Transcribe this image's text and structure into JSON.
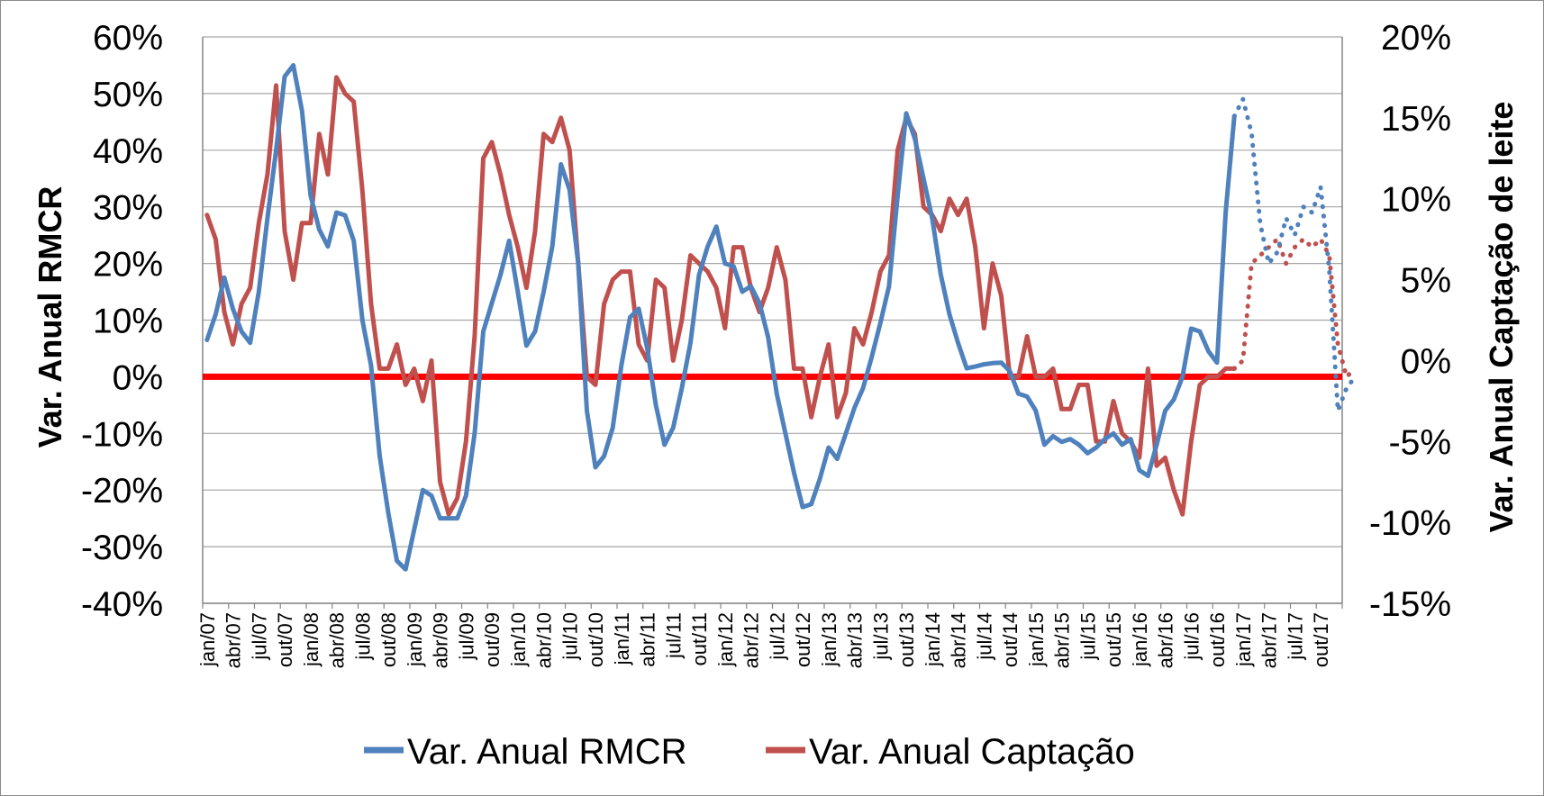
{
  "chart_data": {
    "type": "line",
    "title": "",
    "colors": {
      "rmcr": "#4f81bd",
      "captacao": "#c0504d",
      "zero_line": "#ff0000",
      "grid": "#a6a6a6"
    },
    "y_left": {
      "label": "Var. Anual RMCR",
      "range": [
        -40,
        60
      ],
      "step": 10,
      "tick_labels": [
        "-40%",
        "-30%",
        "-20%",
        "-10%",
        "0%",
        "10%",
        "20%",
        "30%",
        "40%",
        "50%",
        "60%"
      ]
    },
    "y_right": {
      "label": "Var. Anual Captação de leite",
      "range": [
        -15,
        20
      ],
      "step": 5,
      "tick_labels": [
        "-15%",
        "-10%",
        "-5%",
        "0%",
        "5%",
        "10%",
        "15%",
        "20%"
      ]
    },
    "x": {
      "start": "2007-01",
      "count": 132,
      "tick_labels": [
        "jan/07",
        "abr/07",
        "jul/07",
        "out/07",
        "jan/08",
        "abr/08",
        "jul/08",
        "out/08",
        "jan/09",
        "abr/09",
        "jul/09",
        "out/09",
        "jan/10",
        "abr/10",
        "jul/10",
        "out/10",
        "jan/11",
        "abr/11",
        "jul/11",
        "out/11",
        "jan/12",
        "abr/12",
        "jul/12",
        "out/12",
        "jan/13",
        "abr/13",
        "jul/13",
        "out/13",
        "jan/14",
        "abr/14",
        "jul/14",
        "out/14",
        "jan/15",
        "abr/15",
        "jul/15",
        "out/15",
        "jan/16",
        "abr/16",
        "jul/16",
        "out/16",
        "jan/17",
        "abr/17",
        "jul/17",
        "out/17"
      ]
    },
    "grid": true,
    "legend_position": "bottom",
    "series": [
      {
        "name": "Var. Anual RMCR",
        "axis": "left",
        "actual_points": 120,
        "forecast_style": "dotted",
        "values": [
          6.5,
          11.0,
          17.5,
          12.0,
          8.0,
          6.0,
          15.0,
          28.0,
          40.0,
          53.0,
          55.0,
          47.0,
          32.0,
          26.0,
          23.0,
          29.0,
          28.5,
          24.0,
          10.0,
          2.0,
          -14.0,
          -24.0,
          -32.5,
          -34.0,
          -27.0,
          -20.0,
          -21.0,
          -25.0,
          -25.0,
          -25.0,
          -21.0,
          -10.0,
          8.0,
          13.0,
          18.0,
          24.0,
          15.0,
          5.5,
          8.0,
          15.0,
          23.0,
          37.5,
          33.0,
          20.0,
          -6.0,
          -16.0,
          -14.0,
          -9.0,
          2.0,
          10.5,
          12.0,
          5.0,
          -5.0,
          -12.0,
          -9.0,
          -2.0,
          6.0,
          18.0,
          23.0,
          26.5,
          20.0,
          19.5,
          15.0,
          16.0,
          13.0,
          7.0,
          -3.0,
          -10.0,
          -17.0,
          -23.0,
          -22.5,
          -18.0,
          -12.5,
          -14.5,
          -10.0,
          -5.5,
          -2.0,
          3.5,
          9.5,
          16.0,
          32.0,
          46.5,
          42.0,
          35.0,
          28.0,
          18.0,
          11.0,
          6.0,
          1.5,
          1.8,
          2.2,
          2.4,
          2.5,
          1.0,
          -3.0,
          -3.5,
          -6.0,
          -12.0,
          -10.5,
          -11.5,
          -11.0,
          -12.0,
          -13.5,
          -12.5,
          -11.0,
          -10.0,
          -12.0,
          -11.0,
          -16.5,
          -17.5,
          -12.0,
          -6.0,
          -4.0,
          0.0,
          8.5,
          8.0,
          4.5,
          2.5,
          29.0,
          46.0,
          49.0,
          43.0,
          27.0,
          20.0,
          22.0,
          28.0,
          25.0,
          30.0,
          29.0,
          33.5,
          19.0,
          -6.0,
          -2.0,
          0.0
        ]
      },
      {
        "name": "Var. Anual Captação",
        "axis": "right",
        "actual_points": 120,
        "forecast_style": "dotted",
        "values": [
          9.0,
          7.5,
          3.0,
          1.0,
          3.5,
          4.5,
          8.5,
          11.5,
          17.0,
          8.0,
          5.0,
          8.5,
          8.5,
          14.0,
          11.5,
          17.5,
          16.5,
          16.0,
          10.5,
          3.5,
          -0.5,
          -0.5,
          1.0,
          -1.5,
          -0.5,
          -2.5,
          0.0,
          -7.5,
          -9.5,
          -8.5,
          -5.0,
          1.5,
          12.5,
          13.5,
          11.5,
          9.0,
          7.0,
          4.5,
          8.0,
          14.0,
          13.5,
          15.0,
          13.0,
          6.0,
          -1.0,
          -1.5,
          3.5,
          5.0,
          5.5,
          5.5,
          1.0,
          0.0,
          5.0,
          4.5,
          0.0,
          2.5,
          6.5,
          6.0,
          5.5,
          4.5,
          2.0,
          7.0,
          7.0,
          4.5,
          3.0,
          4.5,
          7.0,
          5.0,
          -0.5,
          -0.5,
          -3.5,
          -1.0,
          1.0,
          -3.5,
          -2.0,
          2.0,
          1.0,
          3.0,
          5.5,
          6.5,
          13.0,
          15.0,
          14.0,
          9.5,
          9.0,
          8.0,
          10.0,
          9.0,
          10.0,
          7.0,
          2.0,
          6.0,
          4.0,
          -1.0,
          -1.0,
          1.5,
          -1.0,
          -1.0,
          -0.5,
          -3.0,
          -3.0,
          -1.5,
          -1.5,
          -5.0,
          -5.0,
          -2.5,
          -4.5,
          -5.0,
          -6.0,
          -0.5,
          -6.5,
          -6.0,
          -8.0,
          -9.5,
          -5.0,
          -1.5,
          -1.0,
          -1.0,
          -0.5,
          -0.5,
          0.0,
          6.0,
          6.5,
          7.0,
          7.5,
          6.0,
          7.0,
          7.5,
          7.0,
          7.5,
          6.5,
          1.0,
          -1.0,
          -0.5
        ]
      }
    ]
  }
}
